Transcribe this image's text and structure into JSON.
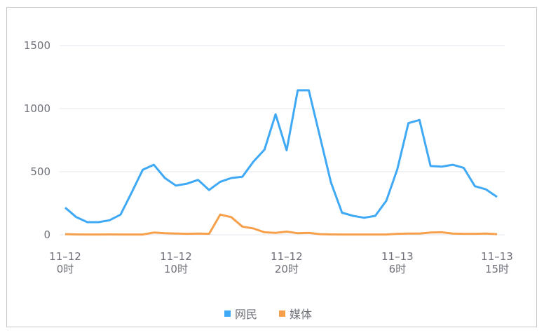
{
  "chart_data": {
    "type": "line",
    "x": [
      "11-12 0时",
      "11-12 1时",
      "11-12 2时",
      "11-12 3时",
      "11-12 4时",
      "11-12 5时",
      "11-12 6时",
      "11-12 7时",
      "11-12 8时",
      "11-12 9时",
      "11-12 10时",
      "11-12 11时",
      "11-12 12时",
      "11-12 13时",
      "11-12 14时",
      "11-12 15时",
      "11-12 16时",
      "11-12 17时",
      "11-12 18时",
      "11-12 19时",
      "11-12 20时",
      "11-12 21时",
      "11-12 22时",
      "11-12 23时",
      "11-13 0时",
      "11-13 1时",
      "11-13 2时",
      "11-13 3时",
      "11-13 4时",
      "11-13 5时",
      "11-13 6时",
      "11-13 7时",
      "11-13 8时",
      "11-13 9时",
      "11-13 10时",
      "11-13 11时",
      "11-13 12时",
      "11-13 13时",
      "11-13 14时",
      "11-13 15时"
    ],
    "x_tick_labels": [
      {
        "index": 0,
        "line1": "11–12",
        "line2": "0时"
      },
      {
        "index": 10,
        "line1": "11–12",
        "line2": "10时"
      },
      {
        "index": 20,
        "line1": "11–12",
        "line2": "20时"
      },
      {
        "index": 30,
        "line1": "11–13",
        "line2": "6时"
      },
      {
        "index": 39,
        "line1": "11–13",
        "line2": "15时"
      }
    ],
    "y_ticks": [
      0,
      500,
      1000,
      1500
    ],
    "ylim": [
      0,
      1500
    ],
    "grid": true,
    "legend_position": "bottom-center",
    "series": [
      {
        "name": "网民",
        "color": "#3fa9f5",
        "values": [
          215,
          140,
          100,
          100,
          115,
          160,
          335,
          515,
          555,
          450,
          390,
          405,
          435,
          355,
          420,
          450,
          460,
          580,
          675,
          955,
          670,
          1145,
          1145,
          780,
          415,
          175,
          150,
          135,
          150,
          270,
          520,
          885,
          910,
          545,
          540,
          555,
          530,
          385,
          360,
          300
        ]
      },
      {
        "name": "媒体",
        "color": "#f7a04b",
        "values": [
          5,
          3,
          2,
          2,
          3,
          2,
          2,
          2,
          18,
          12,
          10,
          8,
          10,
          8,
          160,
          140,
          65,
          50,
          20,
          15,
          25,
          12,
          15,
          5,
          3,
          2,
          2,
          2,
          2,
          2,
          8,
          10,
          10,
          18,
          20,
          10,
          8,
          8,
          10,
          5
        ]
      }
    ]
  }
}
